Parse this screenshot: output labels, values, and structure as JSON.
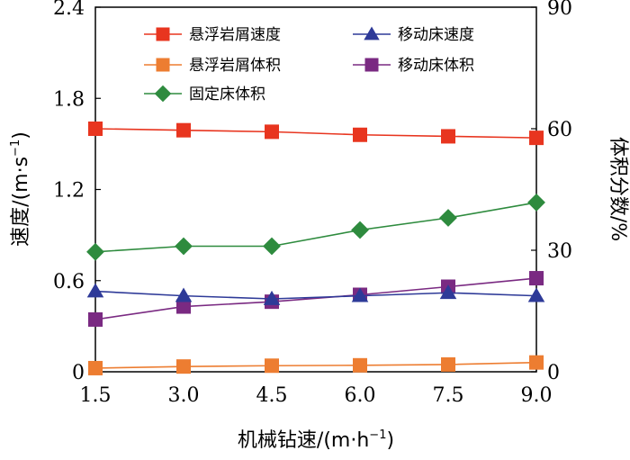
{
  "chart_data": {
    "type": "line",
    "x": [
      1.5,
      3.0,
      4.5,
      6.0,
      7.5,
      9.0
    ],
    "x_tick_labels": [
      "1.5",
      "3.0",
      "4.5",
      "6.0",
      "7.5",
      "9.0"
    ],
    "xlim": [
      1.5,
      9.0
    ],
    "xlabel": "机械钻速/(m·h",
    "xlabel_sup": "−1",
    "xlabel_tail": ")",
    "ylabel_left": "速度/(m·s",
    "ylabel_left_sup": "−1",
    "ylabel_left_tail": ")",
    "ylim_left": [
      0,
      2.4
    ],
    "y_left_ticks": [
      0,
      0.6,
      1.2,
      1.8,
      2.4
    ],
    "y_left_tick_labels": [
      "0",
      "0.6",
      "1.2",
      "1.8",
      "2.4"
    ],
    "ylabel_right": "体积分数/%",
    "ylim_right": [
      0,
      90
    ],
    "y_right_ticks": [
      0,
      30,
      60,
      90
    ],
    "y_right_tick_labels": [
      "0",
      "30",
      "60",
      "90"
    ],
    "grid": false,
    "legend_position": "top",
    "series": [
      {
        "name": "悬浮岩屑速度",
        "axis": "left",
        "color": "#e8351f",
        "marker": "square",
        "x": [
          1.5,
          3.0,
          4.5,
          6.0,
          7.5,
          9.0
        ],
        "values": [
          1.6,
          1.59,
          1.58,
          1.56,
          1.55,
          1.54
        ]
      },
      {
        "name": "移动床速度",
        "axis": "left",
        "color": "#2e3a98",
        "marker": "triangle",
        "x": [
          1.5,
          3.0,
          4.5,
          6.0,
          7.5,
          9.0
        ],
        "values": [
          0.53,
          0.5,
          0.48,
          0.5,
          0.52,
          0.5
        ]
      },
      {
        "name": "悬浮岩屑体积",
        "axis": "right",
        "color": "#ed7d31",
        "marker": "square",
        "x": [
          1.5,
          3.0,
          4.5,
          6.0,
          7.5,
          9.0
        ],
        "values": [
          0.9,
          1.3,
          1.5,
          1.6,
          1.8,
          2.3
        ]
      },
      {
        "name": "移动床体积",
        "axis": "right",
        "color": "#7a2a82",
        "marker": "square",
        "x": [
          1.5,
          3.0,
          4.5,
          6.0,
          7.5,
          9.0
        ],
        "values": [
          12.9,
          16.1,
          17.3,
          19.0,
          21.0,
          23.1
        ]
      },
      {
        "name": "固定床体积",
        "axis": "right",
        "color": "#2e8b3e",
        "marker": "diamond",
        "x": [
          1.5,
          3.0,
          4.5,
          6.0,
          7.5,
          9.0
        ],
        "values": [
          29.6,
          31.0,
          31.0,
          35.0,
          38.0,
          41.8
        ]
      }
    ]
  }
}
